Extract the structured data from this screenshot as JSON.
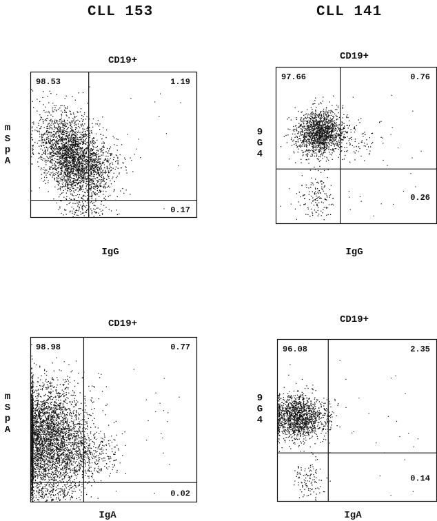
{
  "columns": [
    {
      "title": "CLL 153"
    },
    {
      "title": "CLL 141"
    }
  ],
  "chart_data": [
    {
      "type": "scatter",
      "title": "CD19+",
      "xlabel": "IgG",
      "ylabel": [
        "m",
        "S",
        "p",
        "A"
      ],
      "quadrants": {
        "upper_left": "98.53",
        "upper_right": "1.19",
        "lower_right": "0.17"
      },
      "gate": {
        "x": 0.35,
        "y": 0.12
      },
      "clusters": [
        {
          "cx": 0.25,
          "cy": 0.42,
          "sx": 0.085,
          "sy": 0.16,
          "n": 2600,
          "rot": 0.35
        },
        {
          "cx": 0.41,
          "cy": 0.36,
          "sx": 0.07,
          "sy": 0.08,
          "n": 260,
          "rot": 0.0
        },
        {
          "cx": 0.3,
          "cy": 0.05,
          "sx": 0.1,
          "sy": 0.02,
          "n": 60,
          "rot": 0.0
        }
      ]
    },
    {
      "type": "scatter",
      "title": "CD19+",
      "xlabel": "IgG",
      "ylabel": [
        "9",
        "G",
        "4"
      ],
      "quadrants": {
        "upper_left": "97.66",
        "upper_right": "0.76",
        "lower_right": "0.26"
      },
      "gate": {
        "x": 0.4,
        "y": 0.35
      },
      "clusters": [
        {
          "cx": 0.27,
          "cy": 0.58,
          "sx": 0.075,
          "sy": 0.07,
          "n": 1500,
          "rot": 0.6
        },
        {
          "cx": 0.48,
          "cy": 0.55,
          "sx": 0.08,
          "sy": 0.06,
          "n": 90,
          "rot": 0.0
        },
        {
          "cx": 0.25,
          "cy": 0.17,
          "sx": 0.05,
          "sy": 0.07,
          "n": 140,
          "rot": 0.0
        }
      ]
    },
    {
      "type": "scatter",
      "title": "CD19+",
      "xlabel": "IgA",
      "ylabel": [
        "m",
        "S",
        "p",
        "A"
      ],
      "quadrants": {
        "upper_left": "98.98",
        "upper_right": "0.77",
        "lower_right": "0.02"
      },
      "gate": {
        "x": 0.32,
        "y": 0.12
      },
      "clusters": [
        {
          "cx": 0.08,
          "cy": 0.38,
          "sx": 0.13,
          "sy": 0.17,
          "n": 4200,
          "rot": 0.0
        },
        {
          "cx": 0.35,
          "cy": 0.3,
          "sx": 0.09,
          "sy": 0.08,
          "n": 300,
          "rot": 0.0
        },
        {
          "cx": 0.15,
          "cy": 0.06,
          "sx": 0.07,
          "sy": 0.03,
          "n": 80,
          "rot": 0.0
        }
      ]
    },
    {
      "type": "scatter",
      "title": "CD19+",
      "xlabel": "IgA",
      "ylabel": [
        "9",
        "G",
        "4"
      ],
      "quadrants": {
        "upper_left": "96.08",
        "upper_right": "2.35",
        "lower_right": "0.14"
      },
      "gate": {
        "x": 0.32,
        "y": 0.3
      },
      "clusters": [
        {
          "cx": 0.12,
          "cy": 0.52,
          "sx": 0.075,
          "sy": 0.07,
          "n": 1300,
          "rot": 0.0
        },
        {
          "cx": 0.28,
          "cy": 0.52,
          "sx": 0.05,
          "sy": 0.06,
          "n": 120,
          "rot": 0.0
        },
        {
          "cx": 0.2,
          "cy": 0.14,
          "sx": 0.05,
          "sy": 0.07,
          "n": 110,
          "rot": 0.0
        }
      ]
    }
  ]
}
